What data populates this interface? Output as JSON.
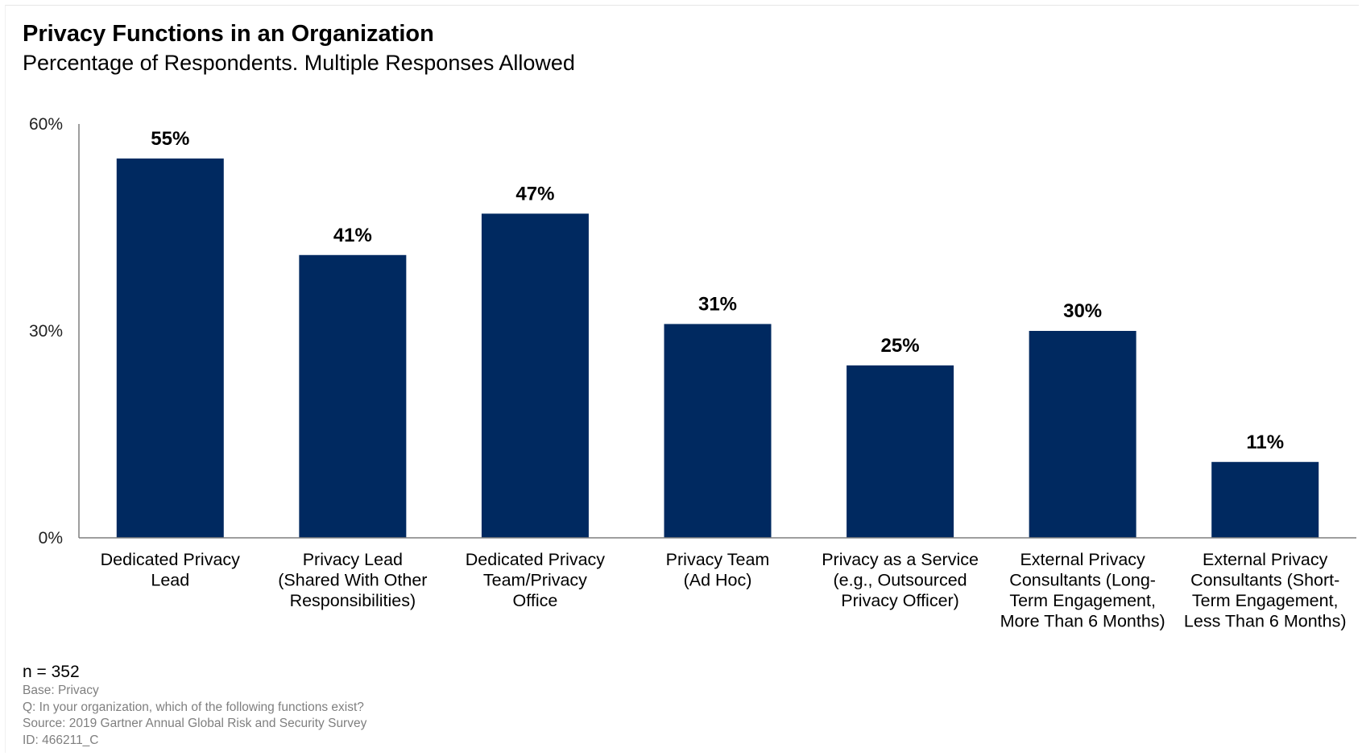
{
  "header": {
    "title": "Privacy Functions in an Organization",
    "subtitle": "Percentage of Respondents. Multiple Responses Allowed"
  },
  "chart_data": {
    "type": "bar",
    "title": "Privacy Functions in an Organization",
    "subtitle": "Percentage of Respondents. Multiple Responses Allowed",
    "categories": [
      [
        "Dedicated Privacy",
        "Lead"
      ],
      [
        "Privacy Lead",
        "(Shared With Other",
        "Responsibilities)"
      ],
      [
        "Dedicated Privacy",
        "Team/Privacy",
        "Office"
      ],
      [
        "Privacy Team",
        "(Ad Hoc)"
      ],
      [
        "Privacy as a Service",
        "(e.g., Outsourced",
        "Privacy Officer)"
      ],
      [
        "External Privacy",
        "Consultants (Long-",
        "Term Engagement,",
        "More Than 6 Months)"
      ],
      [
        "External Privacy",
        "Consultants (Short-",
        "Term Engagement,",
        "Less Than 6 Months)"
      ]
    ],
    "values": [
      55,
      41,
      47,
      31,
      25,
      30,
      11
    ],
    "value_labels": [
      "55%",
      "41%",
      "47%",
      "31%",
      "25%",
      "30%",
      "11%"
    ],
    "ylim": [
      0,
      60
    ],
    "yticks": [
      0,
      30,
      60
    ],
    "ytick_labels": [
      "0%",
      "30%",
      "60%"
    ],
    "bar_color": "#002960",
    "axis_color": "#7f7f7f",
    "grid": false,
    "xlabel": "",
    "ylabel": ""
  },
  "footer": {
    "n": "n = 352",
    "notes": [
      "Base: Privacy",
      "Q: In your organization, which of the following functions exist?",
      "Source: 2019 Gartner Annual Global Risk and Security Survey",
      "ID: 466211_C"
    ]
  }
}
